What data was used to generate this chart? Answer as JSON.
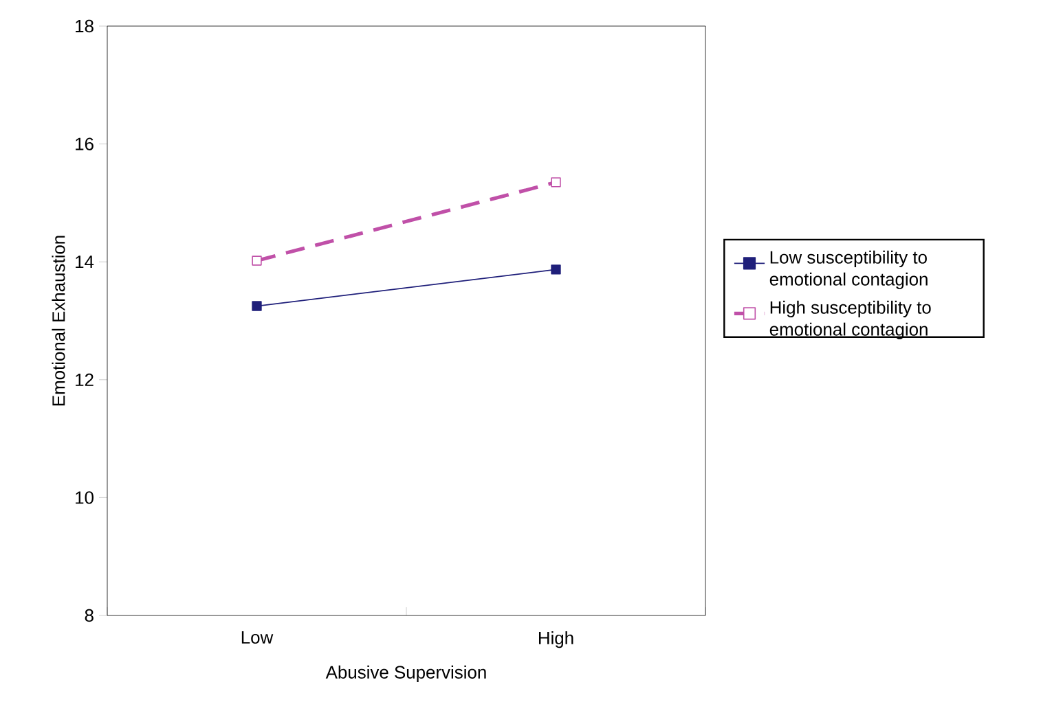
{
  "chart_data": {
    "type": "line",
    "xlabel": "Abusive Supervision",
    "ylabel": "Emotional Exhaustion",
    "categories": [
      "Low",
      "High"
    ],
    "series": [
      {
        "name": "Low susceptibility to emotional contagion",
        "color": "#1f1f7a",
        "values": [
          13.25,
          13.87
        ],
        "line_style": "solid"
      },
      {
        "name": "High susceptibility to emotional contagion",
        "color": "#c050a8",
        "values": [
          14.02,
          15.35
        ],
        "line_style": "dashed"
      }
    ],
    "ylim": [
      8,
      18
    ],
    "yticks": [
      8,
      10,
      12,
      14,
      16,
      18
    ],
    "marker": "square",
    "legend": "right",
    "grid": false
  }
}
